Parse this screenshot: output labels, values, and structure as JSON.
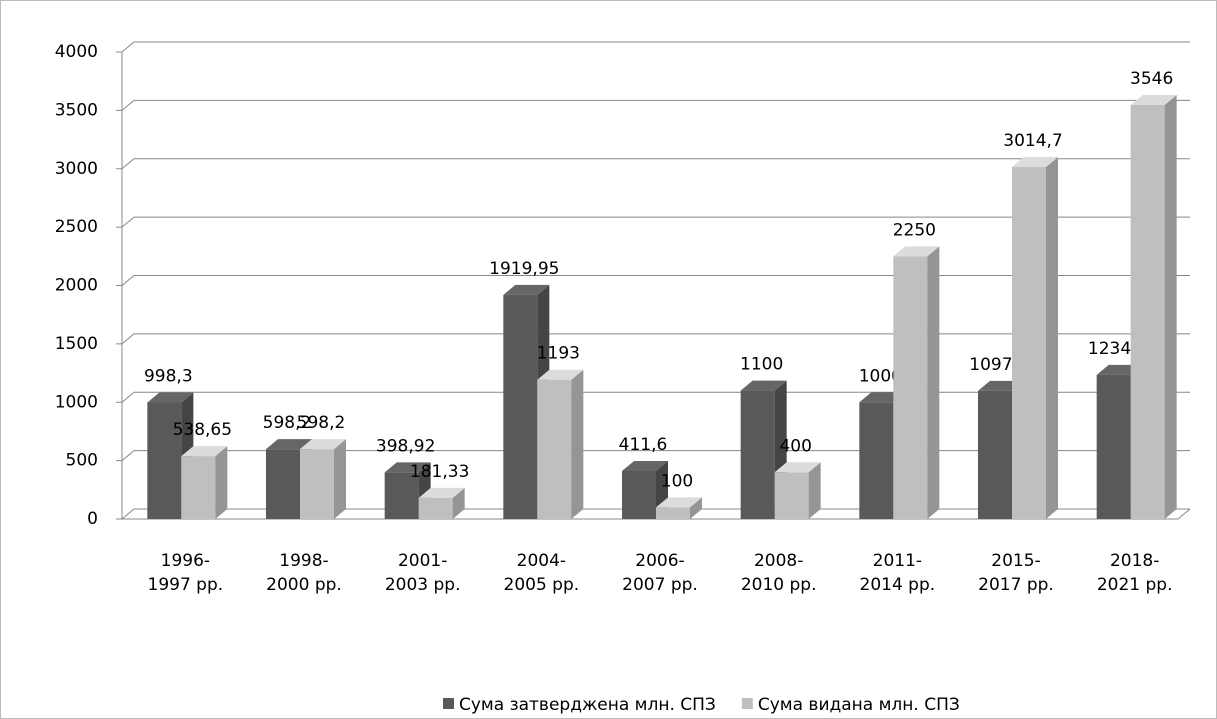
{
  "chart_data": {
    "type": "bar3d",
    "categories": [
      "1996-\n1997 рр.",
      "1998-\n2000 рр.",
      "2001-\n2003 рр.",
      "2004-\n2005 рр.",
      "2006-\n2007 рр.",
      "2008-\n2010 рр.",
      "2011-\n2014 рр.",
      "2015-\n2017 рр.",
      "2018-\n2021 рр."
    ],
    "series": [
      {
        "name": "Сума затверджена млн. СПЗ",
        "color": "#595959",
        "values": [
          998.3,
          598.2,
          398.92,
          1919.95,
          411.6,
          1100,
          1000,
          1097.6,
          1234.8
        ],
        "value_labels": [
          "998,3",
          "598,2",
          "398,92",
          "1919,95",
          "411,6",
          "1100",
          "1000",
          "1097,6",
          "1234,8"
        ]
      },
      {
        "name": "Сума видана млн. СПЗ",
        "color": "#bfbfbf",
        "values": [
          538.65,
          598.2,
          181.33,
          1193,
          100,
          400,
          2250,
          3014.7,
          3546
        ],
        "value_labels": [
          "538,65",
          "598,2",
          "181,33",
          "1193",
          "100",
          "400",
          "2250",
          "3014,7",
          "3546"
        ]
      }
    ],
    "ylim": [
      0,
      4000
    ],
    "yticks": [
      0,
      500,
      1000,
      1500,
      2000,
      2500,
      3000,
      3500,
      4000
    ],
    "grid": true,
    "legend": "bottom"
  }
}
